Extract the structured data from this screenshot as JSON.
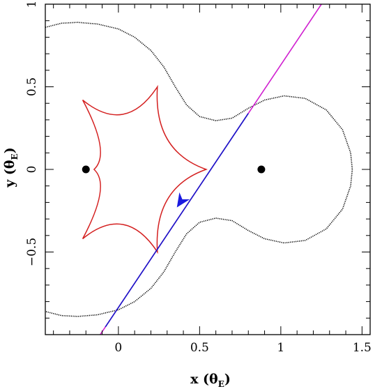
{
  "chart_data": {
    "type": "diagram",
    "xlabel": "x (θ",
    "xlabel_sub": "E",
    "xlabel_close": ")",
    "ylabel": "y (θ",
    "ylabel_sub": "E",
    "ylabel_close": ")",
    "xlim": [
      -0.45,
      1.55
    ],
    "ylim": [
      -1.0,
      1.0
    ],
    "x_ticks": [
      {
        "value": 0,
        "label": "0"
      },
      {
        "value": 0.5,
        "label": "0.5"
      },
      {
        "value": 1,
        "label": "1"
      },
      {
        "value": 1.5,
        "label": "1.5"
      }
    ],
    "y_ticks": [
      {
        "value": -0.5,
        "label": "−0.5"
      },
      {
        "value": 0,
        "label": "0"
      },
      {
        "value": 0.5,
        "label": "0.5"
      },
      {
        "value": 1,
        "label": "1"
      }
    ],
    "x_minor_step": 0.1,
    "y_minor_step": 0.1,
    "lenses": [
      [
        -0.2,
        0.0
      ],
      [
        0.88,
        0.0
      ]
    ],
    "colors": {
      "caustic": "#d42020",
      "critical_curve": "#000000",
      "trajectory_outer": "#d020d0",
      "trajectory_inner": "#1818c8",
      "arrow": "#1a1ae0"
    },
    "trajectory": {
      "x1": -0.18,
      "y1": -1.1,
      "x2": 1.25,
      "y2": 1.0
    },
    "trajectory_inner_range": [
      -0.08,
      0.8
    ],
    "arrow_point": [
      0.36,
      -0.23
    ],
    "caustic_cusps": [
      [
        0.54,
        0.0
      ],
      [
        0.24,
        0.5
      ],
      [
        -0.22,
        0.42
      ],
      [
        -0.15,
        0.0
      ],
      [
        -0.22,
        -0.42
      ],
      [
        0.24,
        -0.5
      ]
    ],
    "critical_curve_points": [
      [
        -0.45,
        0.86
      ],
      [
        -0.35,
        0.885
      ],
      [
        -0.25,
        0.89
      ],
      [
        -0.13,
        0.88
      ],
      [
        0.0,
        0.85
      ],
      [
        0.1,
        0.8
      ],
      [
        0.2,
        0.72
      ],
      [
        0.28,
        0.62
      ],
      [
        0.35,
        0.5
      ],
      [
        0.42,
        0.39
      ],
      [
        0.5,
        0.32
      ],
      [
        0.6,
        0.295
      ],
      [
        0.7,
        0.31
      ],
      [
        0.8,
        0.37
      ],
      [
        0.9,
        0.42
      ],
      [
        1.02,
        0.445
      ],
      [
        1.15,
        0.43
      ],
      [
        1.28,
        0.36
      ],
      [
        1.38,
        0.24
      ],
      [
        1.43,
        0.1
      ],
      [
        1.44,
        0.0
      ],
      [
        1.43,
        -0.1
      ],
      [
        1.38,
        -0.24
      ],
      [
        1.28,
        -0.36
      ],
      [
        1.15,
        -0.43
      ],
      [
        1.02,
        -0.445
      ],
      [
        0.9,
        -0.42
      ],
      [
        0.8,
        -0.37
      ],
      [
        0.7,
        -0.31
      ],
      [
        0.6,
        -0.295
      ],
      [
        0.5,
        -0.32
      ],
      [
        0.42,
        -0.39
      ],
      [
        0.35,
        -0.5
      ],
      [
        0.28,
        -0.62
      ],
      [
        0.2,
        -0.72
      ],
      [
        0.1,
        -0.8
      ],
      [
        0.0,
        -0.85
      ],
      [
        -0.13,
        -0.88
      ],
      [
        -0.25,
        -0.89
      ],
      [
        -0.35,
        -0.885
      ],
      [
        -0.45,
        -0.86
      ]
    ]
  }
}
